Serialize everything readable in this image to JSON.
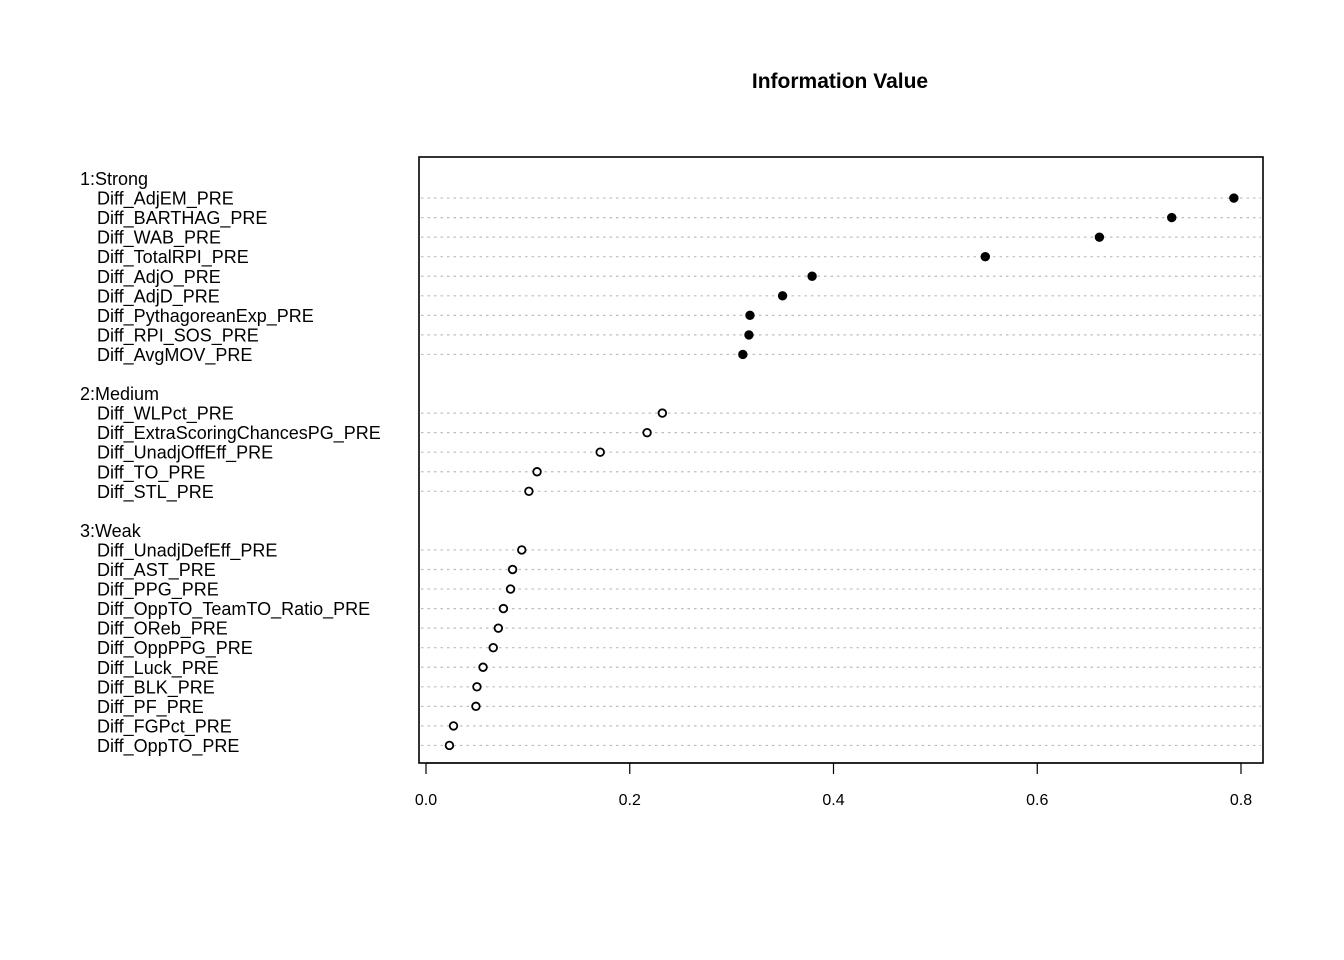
{
  "chart_data": {
    "type": "scatter",
    "title": "Information Value",
    "xlabel": "",
    "ylabel": "",
    "xlim": [
      0,
      0.82
    ],
    "x_ticks": [
      "0.0",
      "0.2",
      "0.4",
      "0.6",
      "0.8"
    ],
    "grid": "horizontal dotted",
    "groups": [
      {
        "name": "1:Strong",
        "marker": "filled",
        "items": [
          {
            "label": "Diff_AdjEM_PRE",
            "value": 0.793
          },
          {
            "label": "Diff_BARTHAG_PRE",
            "value": 0.732
          },
          {
            "label": "Diff_WAB_PRE",
            "value": 0.661
          },
          {
            "label": "Diff_TotalRPI_PRE",
            "value": 0.549
          },
          {
            "label": "Diff_AdjO_PRE",
            "value": 0.379
          },
          {
            "label": "Diff_AdjD_PRE",
            "value": 0.35
          },
          {
            "label": "Diff_PythagoreanExp_PRE",
            "value": 0.318
          },
          {
            "label": "Diff_RPI_SOS_PRE",
            "value": 0.317
          },
          {
            "label": "Diff_AvgMOV_PRE",
            "value": 0.311
          }
        ]
      },
      {
        "name": "2:Medium",
        "marker": "open",
        "items": [
          {
            "label": "Diff_WLPct_PRE",
            "value": 0.232
          },
          {
            "label": "Diff_ExtraScoringChancesPG_PRE",
            "value": 0.217
          },
          {
            "label": "Diff_UnadjOffEff_PRE",
            "value": 0.171
          },
          {
            "label": "Diff_TO_PRE",
            "value": 0.109
          },
          {
            "label": "Diff_STL_PRE",
            "value": 0.101
          }
        ]
      },
      {
        "name": "3:Weak",
        "marker": "open",
        "items": [
          {
            "label": "Diff_UnadjDefEff_PRE",
            "value": 0.094
          },
          {
            "label": "Diff_AST_PRE",
            "value": 0.085
          },
          {
            "label": "Diff_PPG_PRE",
            "value": 0.083
          },
          {
            "label": "Diff_OppTO_TeamTO_Ratio_PRE",
            "value": 0.076
          },
          {
            "label": "Diff_OReb_PRE",
            "value": 0.071
          },
          {
            "label": "Diff_OppPPG_PRE",
            "value": 0.066
          },
          {
            "label": "Diff_Luck_PRE",
            "value": 0.056
          },
          {
            "label": "Diff_BLK_PRE",
            "value": 0.05
          },
          {
            "label": "Diff_PF_PRE",
            "value": 0.049
          },
          {
            "label": "Diff_FGPct_PRE",
            "value": 0.027
          },
          {
            "label": "Diff_OppTO_PRE",
            "value": 0.023
          }
        ]
      }
    ]
  }
}
